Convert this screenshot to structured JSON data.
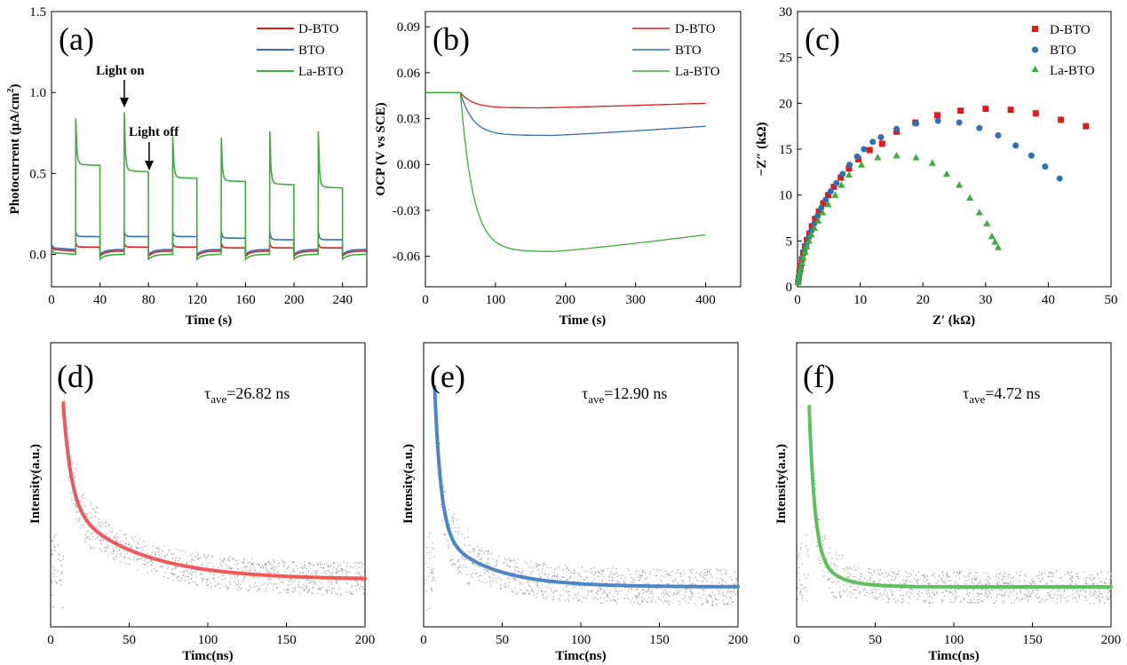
{
  "colors": {
    "red": "#e31a1c",
    "blue": "#2e6fb5",
    "green": "#3aad3a",
    "lred": "#f25757",
    "lblue": "#4a86c8",
    "lgreen": "#5cc05c",
    "noise": "#9a9a9a"
  },
  "chart_data": [
    {
      "id": "a",
      "type": "line",
      "letter": "(a)",
      "xlabel": "Time (s)",
      "ylabel_main": "Photocurrent (μA/cm",
      "ylabel_sup": "2",
      "ylabel_end": ")",
      "xlim": [
        0,
        260
      ],
      "ylim": [
        -0.2,
        1.5
      ],
      "xticks": [
        0,
        40,
        80,
        120,
        160,
        200,
        240
      ],
      "yticks": [
        0.0,
        0.5,
        1.0,
        1.5
      ],
      "ytick_labels": [
        "0.0",
        "0.5",
        "1.0",
        "1.5"
      ],
      "legend": [
        "D-BTO",
        "BTO",
        "La-BTO"
      ],
      "annotations": [
        {
          "text": "Light on",
          "x": 60,
          "y": 1.1
        },
        {
          "text": "Light off",
          "x": 80,
          "y": 0.72
        }
      ],
      "light_on_times": [
        20,
        60,
        100,
        140,
        180,
        220
      ],
      "light_period_s": 20,
      "series": [
        {
          "name": "D-BTO",
          "color": "red",
          "dark": 0.02,
          "spike": 0.07,
          "plateau": [
            0.045,
            0.045,
            0.045,
            0.04,
            0.04,
            0.04
          ]
        },
        {
          "name": "BTO",
          "color": "blue",
          "dark": 0.03,
          "spike": 0.14,
          "plateau": [
            0.11,
            0.11,
            0.11,
            0.1,
            0.09,
            0.09
          ]
        },
        {
          "name": "La-BTO",
          "color": "green",
          "dark": 0.0,
          "spike": [
            0.84,
            0.88,
            0.73,
            0.72,
            0.76,
            0.76
          ],
          "plateau": [
            0.55,
            0.51,
            0.47,
            0.45,
            0.43,
            0.41
          ]
        }
      ]
    },
    {
      "id": "b",
      "type": "line",
      "letter": "(b)",
      "xlabel": "Time (s)",
      "ylabel": "OCP (V vs SCE)",
      "xlim": [
        0,
        450
      ],
      "ylim": [
        -0.08,
        0.1
      ],
      "xticks": [
        0,
        100,
        200,
        300,
        400
      ],
      "yticks": [
        -0.06,
        -0.03,
        0.0,
        0.03,
        0.06,
        0.09
      ],
      "ytick_labels": [
        "-0.06",
        "-0.03",
        "0.00",
        "0.03",
        "0.06",
        "0.09"
      ],
      "legend": [
        "D-BTO",
        "BTO",
        "La-BTO"
      ],
      "series": [
        {
          "name": "D-BTO",
          "color": "red",
          "start": 0.047,
          "min": 0.037,
          "min_t": 160,
          "end": 0.04
        },
        {
          "name": "BTO",
          "color": "blue",
          "start": 0.047,
          "min": 0.019,
          "min_t": 180,
          "end": 0.025
        },
        {
          "name": "La-BTO",
          "color": "green",
          "start": 0.047,
          "min": -0.057,
          "min_t": 180,
          "end": -0.046
        }
      ]
    },
    {
      "id": "c",
      "type": "scatter",
      "letter": "(c)",
      "xlabel": "Z′ (kΩ)",
      "ylabel": "−Z″ (kΩ)",
      "xlim": [
        0,
        50
      ],
      "ylim": [
        0,
        30
      ],
      "xticks": [
        0,
        10,
        20,
        30,
        40,
        50
      ],
      "yticks": [
        0,
        5,
        10,
        15,
        20,
        25,
        30
      ],
      "legend": [
        "D-BTO",
        "BTO",
        "La-BTO"
      ],
      "series": [
        {
          "name": "D-BTO",
          "color": "red",
          "marker": "square",
          "x": [
            0.1,
            0.2,
            0.3,
            0.5,
            0.7,
            0.9,
            1.2,
            1.5,
            1.9,
            2.3,
            2.8,
            3.4,
            4.1,
            4.9,
            5.8,
            6.9,
            8.2,
            9.7,
            11.5,
            13.5,
            15.8,
            18.8,
            22.3,
            26,
            30,
            34,
            38,
            42,
            46
          ],
          "y": [
            0.5,
            1,
            1.6,
            2.3,
            3,
            3.7,
            4.4,
            5.1,
            5.8,
            6.6,
            7.4,
            8.2,
            9.1,
            10,
            10.9,
            11.9,
            12.9,
            13.9,
            14.9,
            15.6,
            16.9,
            17.9,
            18.7,
            19.2,
            19.4,
            19.3,
            18.9,
            18.2,
            17.5
          ]
        },
        {
          "name": "BTO",
          "color": "blue",
          "marker": "circle",
          "x": [
            0.1,
            0.2,
            0.4,
            0.6,
            0.8,
            1.1,
            1.4,
            1.8,
            2.2,
            2.7,
            3.2,
            3.8,
            4.5,
            5.3,
            6.2,
            7.2,
            8.3,
            9.5,
            10.6,
            12,
            13.3,
            15.8,
            18.9,
            22.4,
            25.8,
            29,
            32,
            34.8,
            37.3,
            39.5,
            41.8
          ],
          "y": [
            0.5,
            1.1,
            1.7,
            2.4,
            3.1,
            3.9,
            4.6,
            5.4,
            6.1,
            6.9,
            7.7,
            8.6,
            9.5,
            10.4,
            11.3,
            12.3,
            13.3,
            14.2,
            15,
            15.8,
            16.3,
            17.2,
            17.8,
            18.1,
            17.9,
            17.3,
            16.5,
            15.4,
            14.3,
            13.1,
            11.8
          ]
        },
        {
          "name": "La-BTO",
          "color": "green",
          "marker": "triangle",
          "x": [
            0.1,
            0.2,
            0.3,
            0.5,
            0.7,
            0.9,
            1.2,
            1.5,
            1.8,
            2.2,
            2.7,
            3.3,
            4,
            4.9,
            6,
            7,
            8.2,
            10.2,
            12.8,
            15.8,
            18.9,
            21.5,
            23.8,
            25.8,
            27.5,
            29,
            30.2,
            31,
            31.5,
            32
          ],
          "y": [
            0.5,
            1,
            1.5,
            2,
            2.6,
            3.2,
            3.8,
            4.4,
            5,
            5.7,
            6.4,
            7.2,
            8.1,
            9,
            10,
            11.1,
            12.2,
            13.3,
            14.1,
            14.3,
            14.1,
            13.5,
            12.3,
            11.1,
            9.7,
            8.1,
            6.9,
            5.5,
            4.9,
            4.3
          ]
        }
      ]
    },
    {
      "id": "d",
      "type": "line",
      "letter": "(d)",
      "xlabel": "Timc(ns)",
      "ylabel": "Intensity(a.u.)",
      "tau_symbol": "τ",
      "tau_sub": "ave",
      "tau_value": "=26.82 ns",
      "xlim": [
        0,
        200
      ],
      "xticks": [
        0,
        50,
        100,
        150,
        200
      ],
      "series": [
        {
          "name": "fit",
          "color": "lred",
          "t0": 8,
          "peak": 1.0,
          "baseline": 0.04,
          "tau1": 5,
          "a1": 0.55,
          "tau2": 45,
          "a2": 0.41
        }
      ]
    },
    {
      "id": "e",
      "type": "line",
      "letter": "(e)",
      "xlabel": "Timc(ns)",
      "ylabel": "Intensity(a.u.)",
      "tau_symbol": "τ",
      "tau_sub": "ave",
      "tau_value": "=12.90 ns",
      "xlim": [
        0,
        200
      ],
      "xticks": [
        0,
        50,
        100,
        150,
        200
      ],
      "series": [
        {
          "name": "fit",
          "color": "lblue",
          "t0": 7,
          "peak": 1.0,
          "baseline": 0.0,
          "tau1": 4,
          "a1": 0.72,
          "tau2": 32,
          "a2": 0.28
        }
      ]
    },
    {
      "id": "f",
      "type": "line",
      "letter": "(f)",
      "xlabel": "Timc(ns)",
      "ylabel": "Intensity(a.u.)",
      "tau_symbol": "τ",
      "tau_sub": "ave",
      "tau_value": "=4.72 ns",
      "xlim": [
        0,
        200
      ],
      "xticks": [
        0,
        50,
        100,
        150,
        200
      ],
      "series": [
        {
          "name": "fit",
          "color": "lgreen",
          "t0": 8,
          "peak": 1.0,
          "baseline": 0.0,
          "tau1": 3.5,
          "a1": 0.8,
          "tau2": 14,
          "a2": 0.2
        }
      ]
    }
  ]
}
